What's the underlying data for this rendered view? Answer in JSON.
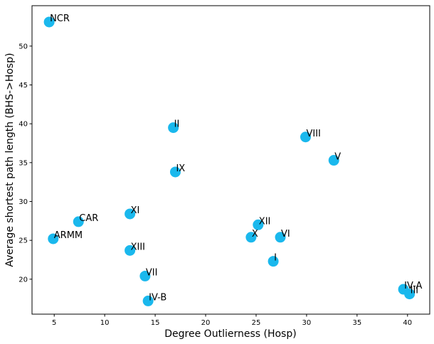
{
  "chart_data": {
    "type": "scatter",
    "title": "",
    "xlabel": "Degree Outlierness (Hosp)",
    "ylabel": "Average shortest path length (BHS->Hosp)",
    "xlim": [
      2.8,
      42.2
    ],
    "ylim": [
      15.5,
      55.2
    ],
    "xticks": [
      5,
      10,
      15,
      20,
      25,
      30,
      35,
      40
    ],
    "yticks": [
      20,
      25,
      30,
      35,
      40,
      45,
      50
    ],
    "grid": false,
    "marker_color": "#1ab8ed",
    "points": [
      {
        "label": "NCR",
        "x": 4.5,
        "y": 53.1
      },
      {
        "label": "II",
        "x": 16.8,
        "y": 39.5
      },
      {
        "label": "VIII",
        "x": 29.9,
        "y": 38.3
      },
      {
        "label": "V",
        "x": 32.7,
        "y": 35.3
      },
      {
        "label": "IX",
        "x": 17.0,
        "y": 33.8
      },
      {
        "label": "XI",
        "x": 12.5,
        "y": 28.4
      },
      {
        "label": "CAR",
        "x": 7.4,
        "y": 27.4
      },
      {
        "label": "XII",
        "x": 25.2,
        "y": 27.0
      },
      {
        "label": "X",
        "x": 24.5,
        "y": 25.4
      },
      {
        "label": "VI",
        "x": 27.4,
        "y": 25.4
      },
      {
        "label": "ARMM",
        "x": 4.9,
        "y": 25.2
      },
      {
        "label": "XIII",
        "x": 12.5,
        "y": 23.7
      },
      {
        "label": "I",
        "x": 26.7,
        "y": 22.3
      },
      {
        "label": "VII",
        "x": 14.0,
        "y": 20.4
      },
      {
        "label": "IV-A",
        "x": 39.6,
        "y": 18.7
      },
      {
        "label": "III",
        "x": 40.2,
        "y": 18.1
      },
      {
        "label": "IV-B",
        "x": 14.3,
        "y": 17.2
      }
    ]
  }
}
